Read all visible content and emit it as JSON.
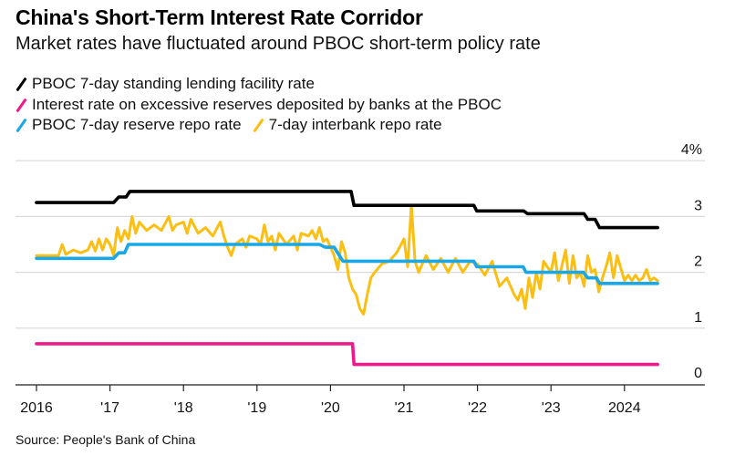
{
  "chart_data": {
    "type": "line",
    "title": "China's Short-Term Interest Rate Corridor",
    "subtitle": "Market rates have fluctuated around PBOC short-term policy rate",
    "xlabel": "",
    "ylabel": "",
    "y_unit_suffix": "%",
    "xlim": [
      2015.7,
      2025.1
    ],
    "ylim": [
      0,
      4
    ],
    "y_ticks": [
      {
        "value": 4,
        "label": "4%"
      },
      {
        "value": 3,
        "label": "3"
      },
      {
        "value": 2,
        "label": "2"
      },
      {
        "value": 1,
        "label": "1"
      },
      {
        "value": 0,
        "label": "0"
      }
    ],
    "x_ticks": [
      {
        "value": 2016,
        "label": "2016"
      },
      {
        "value": 2017,
        "label": "'17"
      },
      {
        "value": 2018,
        "label": "'18"
      },
      {
        "value": 2019,
        "label": "'19"
      },
      {
        "value": 2020,
        "label": "'20"
      },
      {
        "value": 2021,
        "label": "'21"
      },
      {
        "value": 2022,
        "label": "'22"
      },
      {
        "value": 2023,
        "label": "'23"
      },
      {
        "value": 2024,
        "label": "2024"
      }
    ],
    "grid": "horizontal",
    "y_axis_position": "right",
    "legend_position": "top-left",
    "series": [
      {
        "name": "PBOC 7-day standing lending facility rate",
        "color": "#000000",
        "step": true,
        "points": [
          [
            2016.0,
            3.25
          ],
          [
            2017.05,
            3.25
          ],
          [
            2017.12,
            3.35
          ],
          [
            2017.22,
            3.35
          ],
          [
            2017.27,
            3.45
          ],
          [
            2020.28,
            3.45
          ],
          [
            2020.32,
            3.2
          ],
          [
            2021.95,
            3.2
          ],
          [
            2021.99,
            3.1
          ],
          [
            2022.63,
            3.1
          ],
          [
            2022.68,
            3.05
          ],
          [
            2023.45,
            3.05
          ],
          [
            2023.5,
            2.95
          ],
          [
            2023.6,
            2.95
          ],
          [
            2023.66,
            2.8
          ],
          [
            2024.45,
            2.8
          ]
        ]
      },
      {
        "name": "Interest rate on excessive reserves deposited by banks at the PBOC",
        "color": "#ee1a8c",
        "step": true,
        "points": [
          [
            2016.0,
            0.72
          ],
          [
            2020.3,
            0.72
          ],
          [
            2020.32,
            0.35
          ],
          [
            2024.45,
            0.35
          ]
        ]
      },
      {
        "name": "PBOC 7-day reserve repo rate",
        "color": "#1aa7e8",
        "step": true,
        "points": [
          [
            2016.0,
            2.25
          ],
          [
            2017.05,
            2.25
          ],
          [
            2017.12,
            2.35
          ],
          [
            2017.2,
            2.35
          ],
          [
            2017.25,
            2.5
          ],
          [
            2019.85,
            2.5
          ],
          [
            2019.93,
            2.45
          ],
          [
            2020.05,
            2.45
          ],
          [
            2020.17,
            2.2
          ],
          [
            2021.95,
            2.2
          ],
          [
            2021.99,
            2.1
          ],
          [
            2022.62,
            2.1
          ],
          [
            2022.66,
            2.0
          ],
          [
            2023.44,
            2.0
          ],
          [
            2023.5,
            1.9
          ],
          [
            2023.62,
            1.9
          ],
          [
            2023.66,
            1.8
          ],
          [
            2024.45,
            1.8
          ]
        ]
      },
      {
        "name": "7-day interbank repo rate",
        "color": "#fbbf14",
        "step": false,
        "points": [
          [
            2016.0,
            2.3
          ],
          [
            2016.3,
            2.3
          ],
          [
            2016.35,
            2.5
          ],
          [
            2016.4,
            2.32
          ],
          [
            2016.5,
            2.4
          ],
          [
            2016.6,
            2.35
          ],
          [
            2016.7,
            2.4
          ],
          [
            2016.75,
            2.55
          ],
          [
            2016.8,
            2.38
          ],
          [
            2016.85,
            2.6
          ],
          [
            2016.9,
            2.4
          ],
          [
            2016.95,
            2.6
          ],
          [
            2017.0,
            2.5
          ],
          [
            2017.05,
            2.3
          ],
          [
            2017.1,
            2.8
          ],
          [
            2017.15,
            2.55
          ],
          [
            2017.2,
            2.75
          ],
          [
            2017.25,
            2.6
          ],
          [
            2017.3,
            3.0
          ],
          [
            2017.35,
            2.7
          ],
          [
            2017.4,
            2.9
          ],
          [
            2017.5,
            2.75
          ],
          [
            2017.6,
            2.85
          ],
          [
            2017.7,
            2.75
          ],
          [
            2017.8,
            3.0
          ],
          [
            2017.85,
            2.75
          ],
          [
            2017.9,
            2.85
          ],
          [
            2018.0,
            2.9
          ],
          [
            2018.05,
            2.7
          ],
          [
            2018.1,
            2.95
          ],
          [
            2018.2,
            2.7
          ],
          [
            2018.3,
            2.8
          ],
          [
            2018.4,
            2.65
          ],
          [
            2018.5,
            2.9
          ],
          [
            2018.55,
            2.65
          ],
          [
            2018.6,
            2.45
          ],
          [
            2018.65,
            2.3
          ],
          [
            2018.7,
            2.5
          ],
          [
            2018.8,
            2.6
          ],
          [
            2018.85,
            2.45
          ],
          [
            2018.9,
            2.65
          ],
          [
            2019.0,
            2.6
          ],
          [
            2019.05,
            2.5
          ],
          [
            2019.1,
            2.85
          ],
          [
            2019.15,
            2.55
          ],
          [
            2019.2,
            2.65
          ],
          [
            2019.25,
            2.4
          ],
          [
            2019.3,
            2.7
          ],
          [
            2019.4,
            2.5
          ],
          [
            2019.5,
            2.65
          ],
          [
            2019.55,
            2.4
          ],
          [
            2019.6,
            2.7
          ],
          [
            2019.7,
            2.65
          ],
          [
            2019.75,
            2.75
          ],
          [
            2019.8,
            2.6
          ],
          [
            2019.85,
            2.8
          ],
          [
            2019.9,
            2.55
          ],
          [
            2019.95,
            2.6
          ],
          [
            2020.0,
            2.45
          ],
          [
            2020.05,
            2.3
          ],
          [
            2020.1,
            2.05
          ],
          [
            2020.15,
            2.55
          ],
          [
            2020.2,
            2.35
          ],
          [
            2020.25,
            1.9
          ],
          [
            2020.3,
            1.7
          ],
          [
            2020.35,
            1.6
          ],
          [
            2020.4,
            1.35
          ],
          [
            2020.45,
            1.25
          ],
          [
            2020.5,
            1.6
          ],
          [
            2020.55,
            1.9
          ],
          [
            2020.6,
            2.0
          ],
          [
            2020.7,
            2.15
          ],
          [
            2020.8,
            2.2
          ],
          [
            2020.9,
            2.35
          ],
          [
            2021.0,
            2.6
          ],
          [
            2021.05,
            2.1
          ],
          [
            2021.1,
            3.2
          ],
          [
            2021.15,
            2.2
          ],
          [
            2021.2,
            2.0
          ],
          [
            2021.3,
            2.3
          ],
          [
            2021.4,
            2.05
          ],
          [
            2021.5,
            2.25
          ],
          [
            2021.6,
            2.0
          ],
          [
            2021.7,
            2.25
          ],
          [
            2021.8,
            2.0
          ],
          [
            2021.9,
            2.2
          ],
          [
            2022.0,
            2.15
          ],
          [
            2022.1,
            1.95
          ],
          [
            2022.2,
            2.2
          ],
          [
            2022.3,
            1.75
          ],
          [
            2022.4,
            1.9
          ],
          [
            2022.5,
            1.6
          ],
          [
            2022.55,
            1.5
          ],
          [
            2022.6,
            1.7
          ],
          [
            2022.65,
            1.35
          ],
          [
            2022.7,
            1.9
          ],
          [
            2022.75,
            1.55
          ],
          [
            2022.8,
            2.0
          ],
          [
            2022.85,
            1.7
          ],
          [
            2022.9,
            2.2
          ],
          [
            2023.0,
            2.0
          ],
          [
            2023.05,
            2.35
          ],
          [
            2023.1,
            1.85
          ],
          [
            2023.2,
            2.4
          ],
          [
            2023.25,
            1.8
          ],
          [
            2023.3,
            2.3
          ],
          [
            2023.35,
            1.9
          ],
          [
            2023.4,
            2.0
          ],
          [
            2023.45,
            1.75
          ],
          [
            2023.5,
            2.3
          ],
          [
            2023.55,
            2.0
          ],
          [
            2023.6,
            2.05
          ],
          [
            2023.65,
            1.65
          ],
          [
            2023.7,
            1.9
          ],
          [
            2023.75,
            2.1
          ],
          [
            2023.8,
            2.35
          ],
          [
            2023.85,
            1.9
          ],
          [
            2023.9,
            2.3
          ],
          [
            2024.0,
            1.85
          ],
          [
            2024.05,
            1.95
          ],
          [
            2024.1,
            1.85
          ],
          [
            2024.15,
            1.95
          ],
          [
            2024.2,
            1.85
          ],
          [
            2024.25,
            1.9
          ],
          [
            2024.3,
            2.05
          ],
          [
            2024.35,
            1.85
          ],
          [
            2024.4,
            1.9
          ],
          [
            2024.45,
            1.85
          ]
        ]
      }
    ]
  },
  "legend": [
    {
      "label": "PBOC 7-day standing lending facility rate",
      "color": "#000000"
    },
    {
      "label": "Interest rate on excessive reserves deposited by banks at the PBOC",
      "color": "#ee1a8c"
    },
    {
      "label": "PBOC 7-day reserve repo rate",
      "color": "#1aa7e8"
    },
    {
      "label": "7-day interbank repo rate",
      "color": "#fbbf14"
    }
  ],
  "source": "Source: People's Bank of China"
}
